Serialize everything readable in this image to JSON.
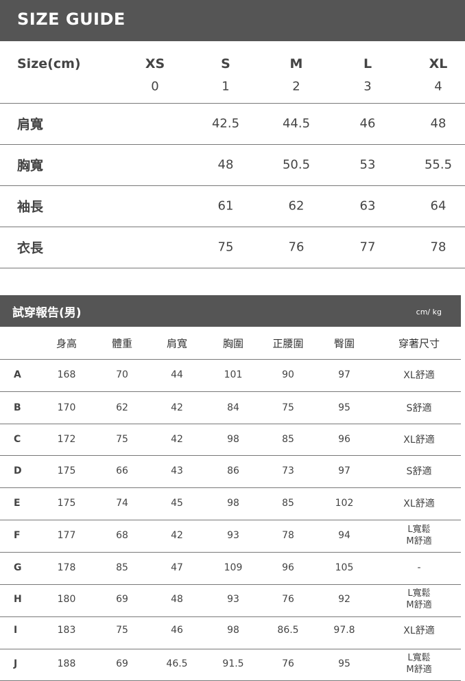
{
  "size_guide": {
    "title": "SIZE GUIDE",
    "header_label": "Size(cm)",
    "sizes": [
      "XS",
      "S",
      "M",
      "L",
      "XL"
    ],
    "size_numbers": [
      "0",
      "1",
      "2",
      "3",
      "4"
    ],
    "rows": [
      {
        "label": "肩寬",
        "values": [
          "",
          "42.5",
          "44.5",
          "46",
          "48"
        ]
      },
      {
        "label": "胸寬",
        "values": [
          "",
          "48",
          "50.5",
          "53",
          "55.5"
        ]
      },
      {
        "label": "袖長",
        "values": [
          "",
          "61",
          "62",
          "63",
          "64"
        ]
      },
      {
        "label": "衣長",
        "values": [
          "",
          "75",
          "76",
          "77",
          "78"
        ]
      }
    ]
  },
  "fit_report": {
    "title": "試穿報告(男)",
    "unit": "cm/ kg",
    "columns": [
      "",
      "身高",
      "體重",
      "肩寬",
      "胸圍",
      "正腰圍",
      "臀圍",
      "穿著尺寸"
    ],
    "rows": [
      [
        "A",
        "168",
        "70",
        "44",
        "101",
        "90",
        "97",
        "XL舒適"
      ],
      [
        "B",
        "170",
        "62",
        "42",
        "84",
        "75",
        "95",
        "S舒適"
      ],
      [
        "C",
        "172",
        "75",
        "42",
        "98",
        "85",
        "96",
        "XL舒適"
      ],
      [
        "D",
        "175",
        "66",
        "43",
        "86",
        "73",
        "97",
        "S舒適"
      ],
      [
        "E",
        "175",
        "74",
        "45",
        "98",
        "85",
        "102",
        "XL舒適"
      ],
      [
        "F",
        "177",
        "68",
        "42",
        "93",
        "78",
        "94",
        "L寬鬆\nM舒適"
      ],
      [
        "G",
        "178",
        "85",
        "47",
        "109",
        "96",
        "105",
        "-"
      ],
      [
        "H",
        "180",
        "69",
        "48",
        "93",
        "76",
        "92",
        "L寬鬆\nM舒適"
      ],
      [
        "I",
        "183",
        "75",
        "46",
        "98",
        "86.5",
        "97.8",
        "XL舒適"
      ],
      [
        "J",
        "188",
        "69",
        "46.5",
        "91.5",
        "76",
        "95",
        "L寬鬆\nM舒適"
      ]
    ]
  }
}
